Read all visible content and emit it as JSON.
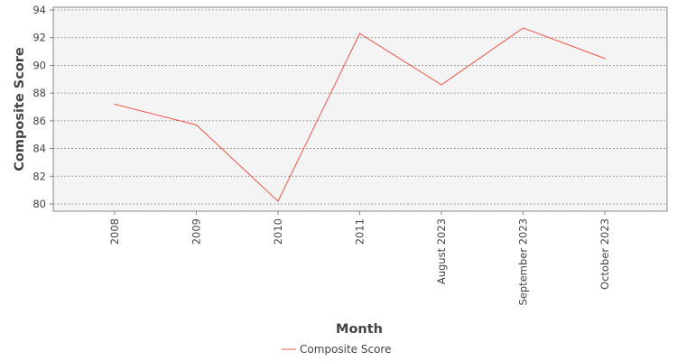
{
  "chart_data": {
    "type": "line",
    "title": "",
    "xlabel": "Month",
    "ylabel": "Composite Score",
    "categories": [
      "2008",
      "2009",
      "2010",
      "2011",
      "August 2023",
      "September 2023",
      "October 2023"
    ],
    "series": [
      {
        "name": "Composite Score",
        "values": [
          87.2,
          85.7,
          80.2,
          92.3,
          88.6,
          92.7,
          90.5
        ],
        "color": "#f0554a"
      }
    ],
    "ylim": [
      79.5,
      94.2
    ],
    "yticks": [
      80,
      82,
      84,
      86,
      88,
      90,
      92,
      94
    ],
    "grid": true,
    "legend_position": "bottom"
  },
  "colors": {
    "plot_background": "#f4f4f4",
    "gridline": "#8a8a8a",
    "axis_line": "#888888",
    "series": "#f0554a"
  }
}
